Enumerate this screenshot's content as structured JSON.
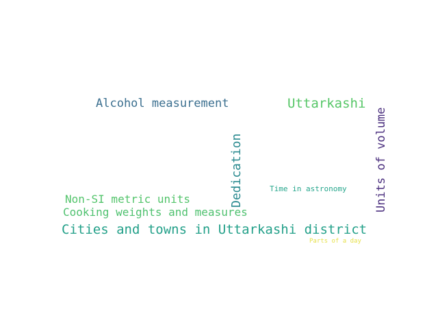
{
  "words": {
    "w1": {
      "text": "Alcohol measurement",
      "color": "#3b6f8f"
    },
    "w2": {
      "text": "Uttarkashi",
      "color": "#56c667"
    },
    "w3": {
      "text": "Dedication",
      "color": "#2a8a8f"
    },
    "w4": {
      "text": "Units of volume",
      "color": "#4b2f7e"
    },
    "w5": {
      "text": "Time in astronomy",
      "color": "#26a68c"
    },
    "w6": {
      "text": "Non-SI metric units",
      "color": "#53c46b"
    },
    "w7": {
      "text": "Cooking weights and measures",
      "color": "#4fc16f"
    },
    "w8": {
      "text": "Cities and towns in Uttarkashi district",
      "color": "#23a089"
    },
    "w9": {
      "text": "Parts of a day",
      "color": "#e6e04a"
    }
  }
}
